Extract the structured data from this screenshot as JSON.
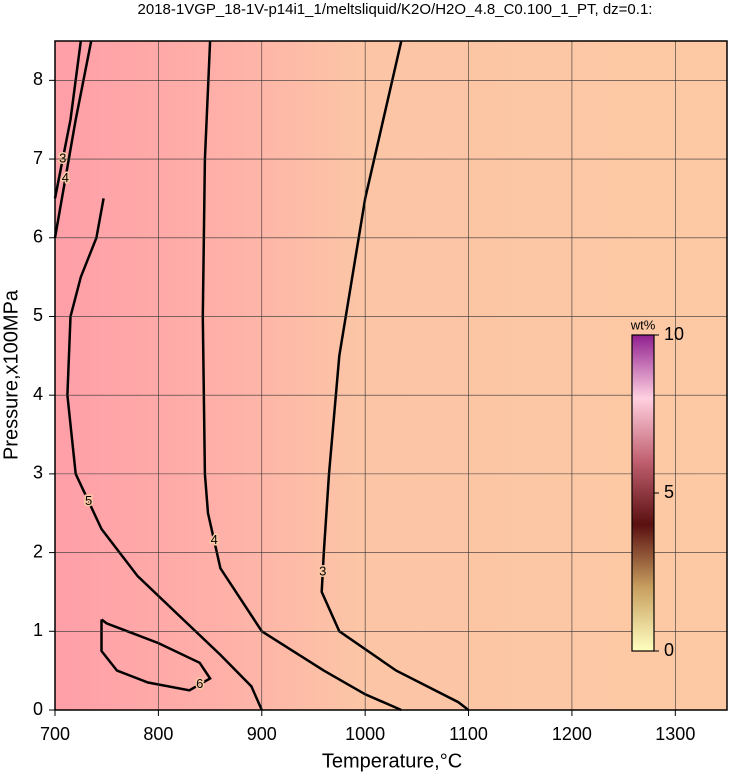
{
  "chart_data": {
    "type": "contour",
    "title": "2018-1VGP_18-1V-p14i1_1/meltsliquid/K2O/H2O_4.8_C0.100_1_PT, dz=0.1:",
    "x_label": "Temperature,°C",
    "y_label": "Pressure,x100MPa",
    "xlim": [
      700,
      1350
    ],
    "ylim": [
      0,
      8.5
    ],
    "xticks": [
      700,
      800,
      900,
      1000,
      1100,
      1200,
      1300
    ],
    "yticks": [
      0,
      1,
      2,
      3,
      4,
      5,
      6,
      7,
      8
    ],
    "grid": true,
    "line_color": "#000000",
    "contours": [
      {
        "level": 3,
        "x": [
          1035,
          1000,
          975,
          965,
          960,
          958,
          975,
          1030,
          1090,
          1100
        ],
        "y": [
          8.5,
          6.5,
          4.5,
          3,
          2,
          1.5,
          1.0,
          0.5,
          0.1,
          0
        ]
      },
      {
        "level": 4,
        "x": [
          850,
          845,
          843,
          845,
          848,
          860,
          900,
          960,
          1000,
          1035
        ],
        "y": [
          8.5,
          7,
          5,
          3,
          2.5,
          1.8,
          1.0,
          0.5,
          0.2,
          0
        ]
      },
      {
        "level": 5,
        "x": [
          747,
          740,
          725,
          715,
          712,
          720,
          745,
          780,
          820,
          860,
          890,
          900
        ],
        "y": [
          6.5,
          6,
          5.5,
          5,
          4,
          3,
          2.3,
          1.7,
          1.2,
          0.7,
          0.3,
          0
        ]
      },
      {
        "level": 6,
        "x": [
          745,
          750,
          800,
          840,
          850,
          830,
          790,
          760,
          745,
          745
        ],
        "y": [
          1.15,
          1.1,
          0.85,
          0.6,
          0.4,
          0.25,
          0.35,
          0.5,
          0.75,
          1.15
        ]
      },
      {
        "level": 4,
        "x": [
          700,
          720,
          735
        ],
        "y": [
          6.0,
          7.5,
          8.5
        ]
      },
      {
        "level": 3,
        "x": [
          700,
          715,
          725
        ],
        "y": [
          6.5,
          7.5,
          8.5
        ]
      }
    ],
    "colorbar": {
      "label": "wt%",
      "lim": [
        0,
        10
      ],
      "ticks": [
        0,
        5,
        10
      ],
      "colors": [
        "#ffffc0",
        "#c8a060",
        "#5a1010",
        "#c06070",
        "#ffd0e0",
        "#902090"
      ]
    }
  }
}
